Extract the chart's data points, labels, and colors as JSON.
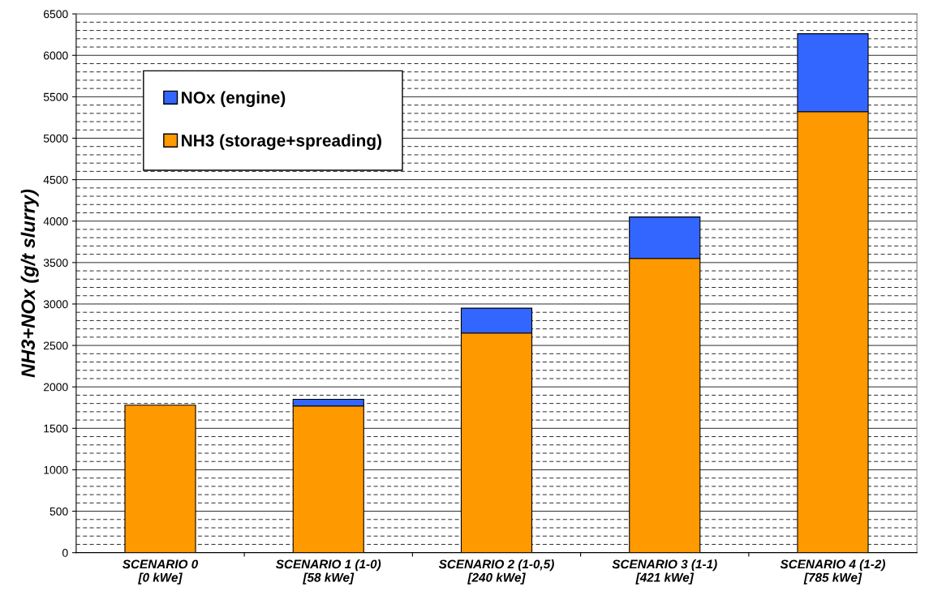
{
  "chart_data": {
    "type": "bar",
    "stacked": true,
    "ylabel": "NH3+NOx (g/t slurry)",
    "categories": [
      "SCENARIO 0\n[0 kWe]",
      "SCENARIO 1 (1-0)\n[58 kWe]",
      "SCENARIO 2 (1-0,5)\n[240 kWe]",
      "SCENARIO 3 (1-1)\n[421 kWe]",
      "SCENARIO 4 (1-2)\n[785 kWe]"
    ],
    "series": [
      {
        "name": "NH3 (storage+spreading)",
        "color": "#ff9900",
        "values": [
          1780,
          1770,
          2650,
          3550,
          5320
        ]
      },
      {
        "name": "NOx (engine)",
        "color": "#3366ff",
        "values": [
          null,
          80,
          300,
          500,
          940
        ]
      }
    ],
    "ylim": [
      0,
      6500
    ],
    "yticks": [
      0,
      500,
      1000,
      1500,
      2000,
      2500,
      3000,
      3500,
      4000,
      4500,
      5000,
      5500,
      6000,
      6500
    ],
    "grid": "y",
    "legend": "top left"
  }
}
